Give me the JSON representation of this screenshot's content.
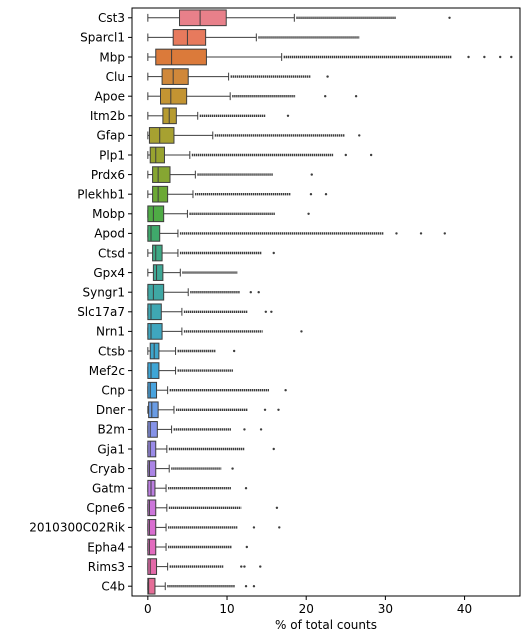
{
  "chart_data": {
    "type": "boxplot",
    "orientation": "horizontal",
    "title": "",
    "xlabel": "% of total counts",
    "ylabel": "",
    "xlim": [
      -2,
      47
    ],
    "xticks": [
      0,
      10,
      20,
      30,
      40
    ],
    "grid": false,
    "categories": [
      "Cst3",
      "Sparcl1",
      "Mbp",
      "Clu",
      "Apoe",
      "Itm2b",
      "Gfap",
      "Plp1",
      "Prdx6",
      "Plekhb1",
      "Mobp",
      "Apod",
      "Ctsd",
      "Gpx4",
      "Syngr1",
      "Slc17a7",
      "Nrn1",
      "Ctsb",
      "Mef2c",
      "Cnp",
      "Dner",
      "B2m",
      "Gja1",
      "Cryab",
      "Gatm",
      "Cpne6",
      "2010300C02Rik",
      "Epha4",
      "Rims3",
      "C4b"
    ],
    "colors": [
      "#e8808a",
      "#e77a5d",
      "#db7a3a",
      "#d0883a",
      "#c39432",
      "#b69b30",
      "#a7a131",
      "#98a32f",
      "#86a632",
      "#6ca935",
      "#4fab45",
      "#3fa96b",
      "#3ea885",
      "#3ea795",
      "#3fa7a4",
      "#3fa7b3",
      "#3fa6bf",
      "#3ea6cc",
      "#3ea6d6",
      "#48a3de",
      "#6a9ce4",
      "#8693e8",
      "#9a8be8",
      "#ab85e6",
      "#bc7ee1",
      "#cc76da",
      "#d96ed0",
      "#e26bbe",
      "#e36aa9",
      "#e56d97"
    ],
    "boxes": [
      {
        "whislo": 0.0,
        "q1": 4.0,
        "med": 6.6,
        "q3": 9.9,
        "whishi": 18.5,
        "fliers_to": 31.3,
        "far": [
          38.1
        ]
      },
      {
        "whislo": 0.0,
        "q1": 3.2,
        "med": 5.0,
        "q3": 7.3,
        "whishi": 13.7,
        "fliers_to": 26.7,
        "far": []
      },
      {
        "whislo": 0.0,
        "q1": 1.0,
        "med": 3.0,
        "q3": 7.4,
        "whishi": 16.9,
        "fliers_to": 38.4,
        "far": [
          40.5,
          42.5,
          44.5,
          45.9
        ]
      },
      {
        "whislo": 0.0,
        "q1": 1.8,
        "med": 3.2,
        "q3": 5.1,
        "whishi": 10.2,
        "fliers_to": 20.6,
        "far": [
          22.7
        ]
      },
      {
        "whislo": 0.0,
        "q1": 1.6,
        "med": 2.9,
        "q3": 4.9,
        "whishi": 10.4,
        "fliers_to": 18.6,
        "far": [
          22.4,
          26.3
        ]
      },
      {
        "whislo": 0.0,
        "q1": 1.9,
        "med": 2.7,
        "q3": 3.6,
        "whishi": 6.3,
        "fliers_to": 14.9,
        "far": [
          17.7
        ]
      },
      {
        "whislo": 0.0,
        "q1": 0.2,
        "med": 1.5,
        "q3": 3.3,
        "whishi": 8.2,
        "fliers_to": 24.9,
        "far": [
          26.7
        ]
      },
      {
        "whislo": 0.0,
        "q1": 0.3,
        "med": 1.0,
        "q3": 2.1,
        "whishi": 5.3,
        "fliers_to": 23.4,
        "far": [
          25.0,
          28.2
        ]
      },
      {
        "whislo": 0.0,
        "q1": 0.6,
        "med": 1.3,
        "q3": 2.8,
        "whishi": 6.0,
        "fliers_to": 15.8,
        "far": [
          20.7
        ]
      },
      {
        "whislo": 0.0,
        "q1": 0.6,
        "med": 1.3,
        "q3": 2.5,
        "whishi": 5.7,
        "fliers_to": 18.0,
        "far": [
          20.6,
          22.5
        ]
      },
      {
        "whislo": 0.0,
        "q1": 0.0,
        "med": 0.7,
        "q3": 2.0,
        "whishi": 5.0,
        "fliers_to": 16.1,
        "far": [
          20.3
        ]
      },
      {
        "whislo": 0.0,
        "q1": 0.0,
        "med": 0.4,
        "q3": 1.5,
        "whishi": 3.8,
        "fliers_to": 29.8,
        "far": [
          31.4,
          34.5,
          37.5
        ]
      },
      {
        "whislo": 0.0,
        "q1": 0.6,
        "med": 1.0,
        "q3": 1.8,
        "whishi": 3.8,
        "fliers_to": 14.4,
        "far": [
          15.9
        ]
      },
      {
        "whislo": 0.0,
        "q1": 0.7,
        "med": 1.1,
        "q3": 1.9,
        "whishi": 4.1,
        "fliers_to": 11.3,
        "far": []
      },
      {
        "whislo": 0.0,
        "q1": 0.0,
        "med": 0.7,
        "q3": 2.0,
        "whishi": 5.1,
        "fliers_to": 11.6,
        "far": [
          13.0,
          14.0
        ]
      },
      {
        "whislo": 0.0,
        "q1": 0.0,
        "med": 0.4,
        "q3": 1.7,
        "whishi": 4.3,
        "fliers_to": 12.6,
        "far": [
          14.9,
          15.6
        ]
      },
      {
        "whislo": 0.0,
        "q1": 0.0,
        "med": 0.4,
        "q3": 1.8,
        "whishi": 4.3,
        "fliers_to": 14.5,
        "far": [
          19.4
        ]
      },
      {
        "whislo": 0.0,
        "q1": 0.3,
        "med": 0.8,
        "q3": 1.4,
        "whishi": 3.5,
        "fliers_to": 8.6,
        "far": [
          10.9
        ]
      },
      {
        "whislo": 0.0,
        "q1": 0.0,
        "med": 0.4,
        "q3": 1.4,
        "whishi": 3.5,
        "fliers_to": 10.8,
        "far": []
      },
      {
        "whislo": 0.0,
        "q1": 0.0,
        "med": 0.3,
        "q3": 1.1,
        "whishi": 2.5,
        "fliers_to": 15.3,
        "far": [
          17.4
        ]
      },
      {
        "whislo": 0.0,
        "q1": 0.1,
        "med": 0.5,
        "q3": 1.3,
        "whishi": 3.3,
        "fliers_to": 12.6,
        "far": [
          14.8,
          16.5
        ]
      },
      {
        "whislo": 0.0,
        "q1": 0.0,
        "med": 0.3,
        "q3": 1.2,
        "whishi": 3.0,
        "fliers_to": 10.5,
        "far": [
          12.2,
          14.3
        ]
      },
      {
        "whislo": 0.0,
        "q1": 0.0,
        "med": 0.3,
        "q3": 1.0,
        "whishi": 2.4,
        "fliers_to": 12.2,
        "far": [
          15.9
        ]
      },
      {
        "whislo": 0.0,
        "q1": 0.0,
        "med": 0.2,
        "q3": 1.0,
        "whishi": 2.7,
        "fliers_to": 9.3,
        "far": [
          10.7
        ]
      },
      {
        "whislo": 0.0,
        "q1": 0.0,
        "med": 0.4,
        "q3": 0.9,
        "whishi": 2.3,
        "fliers_to": 10.5,
        "far": [
          12.4
        ]
      },
      {
        "whislo": 0.0,
        "q1": 0.0,
        "med": 0.2,
        "q3": 1.0,
        "whishi": 2.4,
        "fliers_to": 11.8,
        "far": [
          16.3
        ]
      },
      {
        "whislo": 0.0,
        "q1": 0.0,
        "med": 0.2,
        "q3": 1.0,
        "whishi": 2.3,
        "fliers_to": 11.3,
        "far": [
          13.4,
          16.6
        ]
      },
      {
        "whislo": 0.0,
        "q1": 0.0,
        "med": 0.2,
        "q3": 1.0,
        "whishi": 2.3,
        "fliers_to": 10.6,
        "far": [
          12.5
        ]
      },
      {
        "whislo": 0.0,
        "q1": 0.0,
        "med": 0.3,
        "q3": 1.1,
        "whishi": 2.5,
        "fliers_to": 9.6,
        "far": [
          11.8,
          12.2,
          14.2
        ]
      },
      {
        "whislo": 0.0,
        "q1": 0.0,
        "med": 0.1,
        "q3": 0.9,
        "whishi": 2.2,
        "fliers_to": 11.0,
        "far": [
          12.4,
          13.4
        ]
      }
    ]
  }
}
